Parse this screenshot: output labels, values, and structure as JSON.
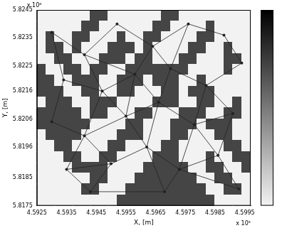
{
  "chart_data": {
    "type": "heatmap",
    "x_label": "X, [m]",
    "y_label": "Y, [m]",
    "x_multiplier": "x 10⁵",
    "y_multiplier": "x 10⁶",
    "xlim": [
      4.5925,
      4.5997
    ],
    "ylim": [
      5.8175,
      5.8245
    ],
    "xticks": [
      4.5925,
      4.5935,
      4.5945,
      4.5955,
      4.5965,
      4.5975,
      4.5985,
      4.5995
    ],
    "yticks": [
      5.8175,
      5.8185,
      5.8196,
      5.8206,
      5.8216,
      5.8225,
      5.8235,
      5.8245
    ],
    "grid": false,
    "colorbar": {
      "clim": [
        0,
        1.4
      ],
      "colors": [
        "#f2f2f2",
        "#000000"
      ]
    },
    "cells": [
      [
        0,
        0,
        0,
        0,
        0,
        0,
        1,
        1,
        0,
        0,
        0,
        0,
        0,
        0,
        1,
        1,
        0,
        0,
        0,
        0,
        0,
        0,
        0,
        0
      ],
      [
        0,
        0,
        0,
        0,
        0,
        1,
        1,
        0,
        0,
        0,
        0,
        0,
        0,
        1,
        1,
        0,
        0,
        0,
        0,
        1,
        0,
        0,
        0,
        0
      ],
      [
        0,
        1,
        0,
        0,
        1,
        1,
        0,
        0,
        0,
        1,
        0,
        0,
        1,
        1,
        0,
        0,
        0,
        0,
        1,
        1,
        0,
        0,
        0,
        0
      ],
      [
        0,
        1,
        1,
        0,
        1,
        0,
        0,
        0,
        1,
        1,
        1,
        0,
        1,
        0,
        0,
        0,
        0,
        1,
        1,
        0,
        0,
        1,
        0,
        0
      ],
      [
        0,
        0,
        1,
        1,
        0,
        0,
        0,
        1,
        1,
        1,
        0,
        1,
        1,
        0,
        0,
        0,
        1,
        1,
        0,
        0,
        0,
        1,
        1,
        0
      ],
      [
        1,
        0,
        0,
        1,
        1,
        0,
        1,
        1,
        0,
        0,
        1,
        1,
        1,
        1,
        1,
        1,
        1,
        0,
        0,
        0,
        0,
        1,
        0,
        0
      ],
      [
        1,
        1,
        0,
        0,
        1,
        1,
        1,
        0,
        0,
        1,
        1,
        1,
        0,
        1,
        1,
        1,
        0,
        0,
        1,
        0,
        0,
        0,
        0,
        0
      ],
      [
        1,
        1,
        1,
        0,
        0,
        1,
        1,
        0,
        0,
        1,
        1,
        0,
        0,
        0,
        1,
        1,
        0,
        1,
        1,
        1,
        0,
        0,
        0,
        0
      ],
      [
        0,
        1,
        1,
        1,
        0,
        0,
        1,
        1,
        1,
        0,
        0,
        0,
        0,
        1,
        1,
        1,
        0,
        0,
        1,
        1,
        0,
        0,
        1,
        0
      ],
      [
        1,
        1,
        1,
        1,
        1,
        0,
        1,
        1,
        0,
        0,
        0,
        1,
        1,
        0,
        0,
        0,
        1,
        1,
        1,
        0,
        0,
        1,
        1,
        0
      ],
      [
        1,
        1,
        1,
        1,
        1,
        1,
        0,
        0,
        0,
        0,
        1,
        1,
        0,
        0,
        0,
        1,
        1,
        1,
        0,
        1,
        1,
        1,
        0,
        0
      ],
      [
        0,
        1,
        1,
        1,
        1,
        0,
        0,
        0,
        0,
        1,
        1,
        1,
        0,
        0,
        0,
        1,
        1,
        0,
        0,
        0,
        1,
        1,
        0,
        0
      ],
      [
        0,
        0,
        1,
        1,
        0,
        0,
        0,
        0,
        1,
        1,
        0,
        0,
        0,
        0,
        1,
        1,
        0,
        0,
        0,
        0,
        0,
        1,
        1,
        0
      ],
      [
        0,
        0,
        0,
        1,
        1,
        0,
        0,
        1,
        1,
        0,
        0,
        0,
        0,
        1,
        1,
        1,
        0,
        0,
        0,
        1,
        0,
        0,
        1,
        1
      ],
      [
        0,
        0,
        0,
        0,
        1,
        1,
        1,
        1,
        0,
        0,
        0,
        0,
        1,
        1,
        1,
        1,
        1,
        0,
        0,
        1,
        1,
        0,
        0,
        1
      ],
      [
        0,
        0,
        0,
        0,
        0,
        0,
        1,
        1,
        0,
        0,
        0,
        1,
        1,
        1,
        1,
        1,
        1,
        1,
        0,
        0,
        1,
        1,
        0,
        0
      ],
      [
        0,
        0,
        0,
        0,
        0,
        1,
        1,
        0,
        0,
        0,
        1,
        1,
        1,
        1,
        1,
        1,
        1,
        1,
        1,
        0,
        0,
        1,
        1,
        0
      ],
      [
        0,
        0,
        0,
        0,
        0,
        0,
        0,
        0,
        0,
        1,
        1,
        1,
        1,
        1,
        1,
        1,
        1,
        1,
        1,
        1,
        0,
        0,
        0,
        0
      ]
    ],
    "network": {
      "color": "#222222",
      "marker": "circle",
      "nodes": [
        [
          4.593,
          5.8237
        ],
        [
          4.5941,
          5.8229
        ],
        [
          4.5952,
          5.824
        ],
        [
          4.5964,
          5.8232
        ],
        [
          4.5976,
          5.824
        ],
        [
          4.5988,
          5.8236
        ],
        [
          4.5994,
          5.8226
        ],
        [
          4.5934,
          5.822
        ],
        [
          4.5947,
          5.8216
        ],
        [
          4.5958,
          5.8222
        ],
        [
          4.597,
          5.8224
        ],
        [
          4.5982,
          5.8218
        ],
        [
          4.593,
          5.8205
        ],
        [
          4.5941,
          5.82
        ],
        [
          4.5955,
          5.8207
        ],
        [
          4.5966,
          5.8212
        ],
        [
          4.5978,
          5.8204
        ],
        [
          4.5991,
          5.8208
        ],
        [
          4.5935,
          5.8188
        ],
        [
          4.595,
          5.819
        ],
        [
          4.5962,
          5.8196
        ],
        [
          4.5973,
          5.8188
        ],
        [
          4.5986,
          5.8193
        ],
        [
          4.5943,
          5.818
        ],
        [
          4.5968,
          5.818
        ],
        [
          4.5993,
          5.8181
        ]
      ],
      "edges": [
        [
          0,
          1
        ],
        [
          0,
          7
        ],
        [
          1,
          2
        ],
        [
          1,
          8
        ],
        [
          1,
          9
        ],
        [
          2,
          3
        ],
        [
          3,
          4
        ],
        [
          3,
          9
        ],
        [
          3,
          10
        ],
        [
          4,
          5
        ],
        [
          5,
          6
        ],
        [
          4,
          10
        ],
        [
          6,
          11
        ],
        [
          10,
          11
        ],
        [
          7,
          8
        ],
        [
          7,
          12
        ],
        [
          8,
          9
        ],
        [
          8,
          13
        ],
        [
          8,
          14
        ],
        [
          9,
          14
        ],
        [
          9,
          15
        ],
        [
          10,
          15
        ],
        [
          11,
          16
        ],
        [
          11,
          17
        ],
        [
          15,
          16
        ],
        [
          16,
          17
        ],
        [
          12,
          13
        ],
        [
          13,
          14
        ],
        [
          14,
          15
        ],
        [
          13,
          18
        ],
        [
          13,
          19
        ],
        [
          14,
          20
        ],
        [
          15,
          20
        ],
        [
          16,
          21
        ],
        [
          16,
          22
        ],
        [
          17,
          22
        ],
        [
          18,
          19
        ],
        [
          19,
          20
        ],
        [
          20,
          21
        ],
        [
          21,
          22
        ],
        [
          18,
          23
        ],
        [
          19,
          23
        ],
        [
          20,
          24
        ],
        [
          21,
          24
        ],
        [
          22,
          25
        ],
        [
          21,
          25
        ],
        [
          23,
          24
        ]
      ]
    }
  }
}
